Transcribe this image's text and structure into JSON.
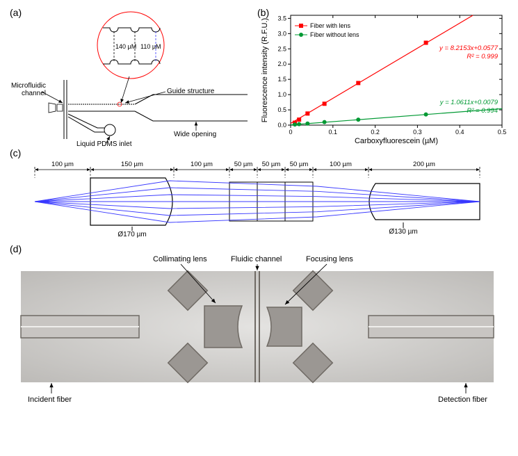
{
  "panel_a": {
    "label": "(a)",
    "inset": {
      "dim1": "140 µM",
      "dim2": "110 µM"
    },
    "labels": {
      "microfluidic_channel": "Microfluidic\nchannel",
      "guide_structure": "Guide structure",
      "liquid_pdms_inlet": "Liquid PDMS inlet",
      "wide_opening": "Wide opening"
    }
  },
  "panel_b": {
    "label": "(b)",
    "ylabel": "Fluorescence intensity (R.F.U.)",
    "xlabel": "Carboxyfluorescein (µM)",
    "legend": {
      "series1": "Fiber with lens",
      "series2": "Fiber without lens"
    },
    "series1": {
      "color": "#ff0000",
      "marker": "square",
      "x": [
        0.01,
        0.02,
        0.04,
        0.08,
        0.16,
        0.32
      ],
      "y": [
        0.08,
        0.18,
        0.38,
        0.7,
        1.38,
        2.7
      ],
      "fit_line": {
        "slope": 8.2153,
        "intercept": 0.0577
      },
      "fit_text": "y = 8.2153x+0.0577",
      "r2_text": "R² = 0.999"
    },
    "series2": {
      "color": "#009933",
      "marker": "circle",
      "x": [
        0.01,
        0.02,
        0.04,
        0.08,
        0.16,
        0.32
      ],
      "y": [
        0.02,
        0.03,
        0.05,
        0.1,
        0.18,
        0.35
      ],
      "fit_line": {
        "slope": 1.0611,
        "intercept": 0.0079
      },
      "fit_text": "y = 1.0611x+0.0079",
      "r2_text": "R² = 0.994"
    },
    "xlim": [
      0,
      0.5
    ],
    "ylim": [
      0,
      3.6
    ],
    "xticks": [
      0,
      0.1,
      0.2,
      0.3,
      0.4,
      0.5
    ],
    "yticks": [
      0,
      0.5,
      1.0,
      1.5,
      2.0,
      2.5,
      3.0,
      3.5
    ],
    "label_fontsize": 11,
    "tick_fontsize": 9
  },
  "panel_c": {
    "label": "(c)",
    "dims_top": [
      "100 µm",
      "150 µm",
      "100 µm",
      "50 µm",
      "50 µm",
      "50 µm",
      "100 µm",
      "200 µm"
    ],
    "dia_left": "Ø170 µm",
    "dia_right": "Ø130 µm",
    "ray_color": "#3838ff",
    "outline_color": "#000000"
  },
  "panel_d": {
    "label": "(d)",
    "labels": {
      "collimating_lens": "Collimating lens",
      "fluidic_channel": "Fluidic channel",
      "focusing_lens": "Focusing lens",
      "incident_fiber": "Incident fiber",
      "detection_fiber": "Detection fiber"
    },
    "img_bg": "#d2d1cf",
    "shape_fill": "#9b9793",
    "shape_stroke": "#6f6a64",
    "fiber_fill": "#c8c5c2"
  }
}
